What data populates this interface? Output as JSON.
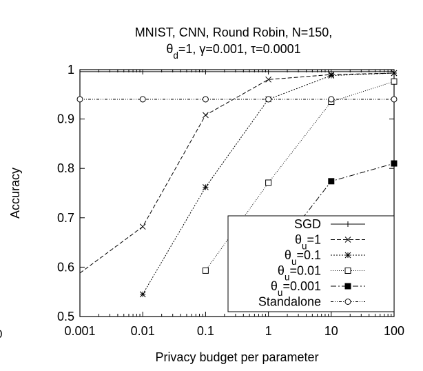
{
  "chart_data": {
    "type": "line",
    "title_line1": "MNIST, CNN, Round Robin, N=150,",
    "title_line2": {
      "parts": [
        {
          "text": "θ"
        },
        {
          "text": "d",
          "sub": true
        },
        {
          "text": "=1, γ=0.001, τ=0.0001"
        }
      ]
    },
    "xlabel": "Privacy budget per parameter",
    "ylabel": "Accuracy",
    "x_scale": "log",
    "xlim": [
      0.001,
      100
    ],
    "ylim": [
      0.5,
      1.0
    ],
    "x_ticks": [
      {
        "value": 0.001,
        "label": "0.001"
      },
      {
        "value": 0.01,
        "label": "0.01"
      },
      {
        "value": 0.1,
        "label": "0.1"
      },
      {
        "value": 1,
        "label": "1"
      },
      {
        "value": 10,
        "label": "10"
      },
      {
        "value": 100,
        "label": "100"
      }
    ],
    "y_ticks": [
      {
        "value": 0.5,
        "label": "0.5"
      },
      {
        "value": 0.6,
        "label": "0.6"
      },
      {
        "value": 0.7,
        "label": "0.7"
      },
      {
        "value": 0.8,
        "label": "0.8"
      },
      {
        "value": 0.9,
        "label": "0.9"
      },
      {
        "value": 1.0,
        "label": "1"
      }
    ],
    "edge_artifact": "0",
    "grid": false,
    "legend_position": "bottom-right",
    "series": [
      {
        "name": "SGD",
        "label_parts": [
          {
            "text": "SGD"
          }
        ],
        "marker": "plus",
        "dash": "",
        "points": [
          [
            0.001,
            0.996
          ],
          [
            100,
            0.996
          ]
        ]
      },
      {
        "name": "θu=1",
        "label_parts": [
          {
            "text": "θ"
          },
          {
            "text": "u",
            "sub": true
          },
          {
            "text": "=1"
          }
        ],
        "marker": "x",
        "dash": "6,3",
        "points": [
          [
            0.001,
            0.588
          ],
          [
            0.01,
            0.682
          ],
          [
            0.1,
            0.908
          ],
          [
            1,
            0.98
          ],
          [
            10,
            0.99
          ],
          [
            100,
            0.993
          ]
        ]
      },
      {
        "name": "θu=0.1",
        "label_parts": [
          {
            "text": "θ"
          },
          {
            "text": "u",
            "sub": true
          },
          {
            "text": "=0.1"
          }
        ],
        "marker": "star",
        "dash": "2,2",
        "points": [
          [
            0.01,
            0.545
          ],
          [
            0.1,
            0.762
          ],
          [
            1,
            0.94
          ],
          [
            10,
            0.988
          ],
          [
            100,
            0.993
          ]
        ]
      },
      {
        "name": "θu=0.01",
        "label_parts": [
          {
            "text": "θ"
          },
          {
            "text": "u",
            "sub": true
          },
          {
            "text": "=0.01"
          }
        ],
        "marker": "square-open",
        "dash": "1,2",
        "points": [
          [
            0.1,
            0.593
          ],
          [
            1,
            0.771
          ],
          [
            10,
            0.935
          ],
          [
            100,
            0.976
          ]
        ]
      },
      {
        "name": "θu=0.001",
        "label_parts": [
          {
            "text": "θ"
          },
          {
            "text": "u",
            "sub": true
          },
          {
            "text": "=0.001"
          }
        ],
        "marker": "square-filled",
        "dash": "8,3,2,3",
        "points": [
          [
            1,
            0.61
          ],
          [
            10,
            0.774
          ],
          [
            100,
            0.81
          ]
        ]
      },
      {
        "name": "Standalone",
        "label_parts": [
          {
            "text": "Standalone"
          }
        ],
        "marker": "circle-open",
        "dash": "4,2,1,2,1,2",
        "points": [
          [
            0.001,
            0.94
          ],
          [
            0.01,
            0.94
          ],
          [
            0.1,
            0.94
          ],
          [
            1,
            0.94
          ],
          [
            10,
            0.94
          ],
          [
            100,
            0.94
          ]
        ]
      }
    ]
  }
}
